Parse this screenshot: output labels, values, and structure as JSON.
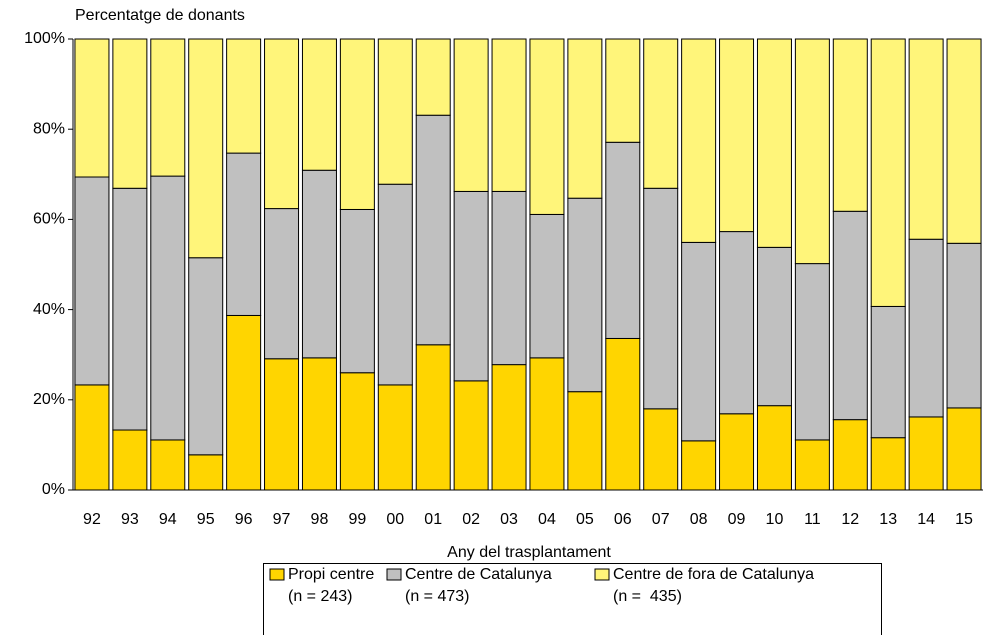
{
  "chart_data": {
    "type": "stacked_bar",
    "y_axis_label": "Percentatge de donants",
    "x_axis_label": "Any del trasplantament",
    "categories": [
      "92",
      "93",
      "94",
      "95",
      "96",
      "97",
      "98",
      "99",
      "00",
      "01",
      "02",
      "03",
      "04",
      "05",
      "06",
      "07",
      "08",
      "09",
      "10",
      "11",
      "12",
      "13",
      "14",
      "15"
    ],
    "series": [
      {
        "name": "Propi centre",
        "n_label": "(n = 243)",
        "color": "#ffd500",
        "values": [
          23.3,
          13.3,
          11.1,
          7.8,
          38.7,
          29.1,
          29.3,
          26.0,
          23.3,
          32.2,
          24.2,
          27.8,
          29.3,
          21.8,
          33.6,
          18.0,
          10.9,
          16.9,
          18.7,
          11.1,
          15.6,
          11.6,
          16.2,
          18.2
        ]
      },
      {
        "name": "Centre de Catalunya",
        "n_label": "(n = 473)",
        "color": "#c0c0c0",
        "values": [
          46.1,
          53.6,
          58.5,
          43.7,
          36.0,
          33.3,
          41.6,
          36.2,
          44.5,
          50.9,
          42.0,
          38.4,
          31.8,
          42.9,
          43.5,
          48.9,
          44.0,
          40.4,
          35.1,
          39.1,
          46.2,
          29.1,
          39.4,
          36.5
        ]
      },
      {
        "name": "Centre de fora de Catalunya",
        "n_label": "(n =  435)",
        "color": "#fff57a",
        "values": [
          30.6,
          33.1,
          30.4,
          48.5,
          25.3,
          37.6,
          29.1,
          37.8,
          32.2,
          16.9,
          33.8,
          33.8,
          38.9,
          35.3,
          22.9,
          33.1,
          45.1,
          42.7,
          46.2,
          49.8,
          38.2,
          59.3,
          44.4,
          45.3
        ]
      }
    ],
    "ylim": [
      0,
      100
    ],
    "yticks": [
      {
        "value": 0,
        "label": "0%"
      },
      {
        "value": 20,
        "label": "20%"
      },
      {
        "value": 40,
        "label": "40%"
      },
      {
        "value": 60,
        "label": "60%"
      },
      {
        "value": 80,
        "label": "80%"
      },
      {
        "value": 100,
        "label": "100%"
      }
    ]
  }
}
